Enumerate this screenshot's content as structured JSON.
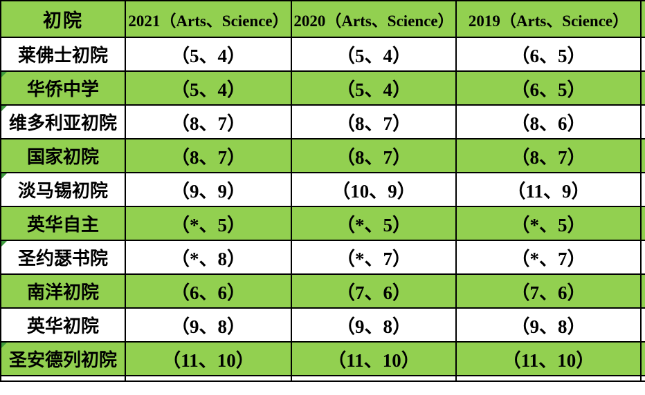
{
  "colors": {
    "row_green": "#92d050",
    "row_white": "#ffffff",
    "border_black": "#000000",
    "corner_marker_green": "#3f9c3f",
    "text": "#000000"
  },
  "table": {
    "header": {
      "school": "初院",
      "y2021": "2021（Arts、Science）",
      "y2020": "2020（Arts、Science）",
      "y2019": "2019（Arts、Science）"
    },
    "rows": [
      {
        "school": "莱佛士初院",
        "y2021": "（5、4）",
        "y2020": "（5、4）",
        "y2019": "（6、5）",
        "shaded": false,
        "marker": false
      },
      {
        "school": "华侨中学",
        "y2021": "（5、4）",
        "y2020": "（5、4）",
        "y2019": "（6、5）",
        "shaded": true,
        "marker": true
      },
      {
        "school": "维多利亚初院",
        "y2021": "（8、7）",
        "y2020": "（8、7）",
        "y2019": "（8、6）",
        "shaded": false,
        "marker": true
      },
      {
        "school": "国家初院",
        "y2021": "（8、7）",
        "y2020": "（8、7）",
        "y2019": "（8、7）",
        "shaded": true,
        "marker": false
      },
      {
        "school": "淡马锡初院",
        "y2021": "（9、9）",
        "y2020": "（10、9）",
        "y2019": "（11、9）",
        "shaded": false,
        "marker": true
      },
      {
        "school": "英华自主",
        "y2021": "（*、5）",
        "y2020": "（*、5）",
        "y2019": "（*、5）",
        "shaded": true,
        "marker": false
      },
      {
        "school": "圣约瑟书院",
        "y2021": "（*、8）",
        "y2020": "（*、7）",
        "y2019": "（*、7）",
        "shaded": false,
        "marker": true
      },
      {
        "school": "南洋初院",
        "y2021": "（6、6）",
        "y2020": "（7、6）",
        "y2019": "（7、6）",
        "shaded": true,
        "marker": false
      },
      {
        "school": "英华初院",
        "y2021": "（9、8）",
        "y2020": "（9、8）",
        "y2019": "（9、8）",
        "shaded": false,
        "marker": false
      },
      {
        "school": "圣安德列初院",
        "y2021": "（11、10）",
        "y2020": "（11、10）",
        "y2019": "（11、10）",
        "shaded": true,
        "marker": true
      }
    ]
  }
}
